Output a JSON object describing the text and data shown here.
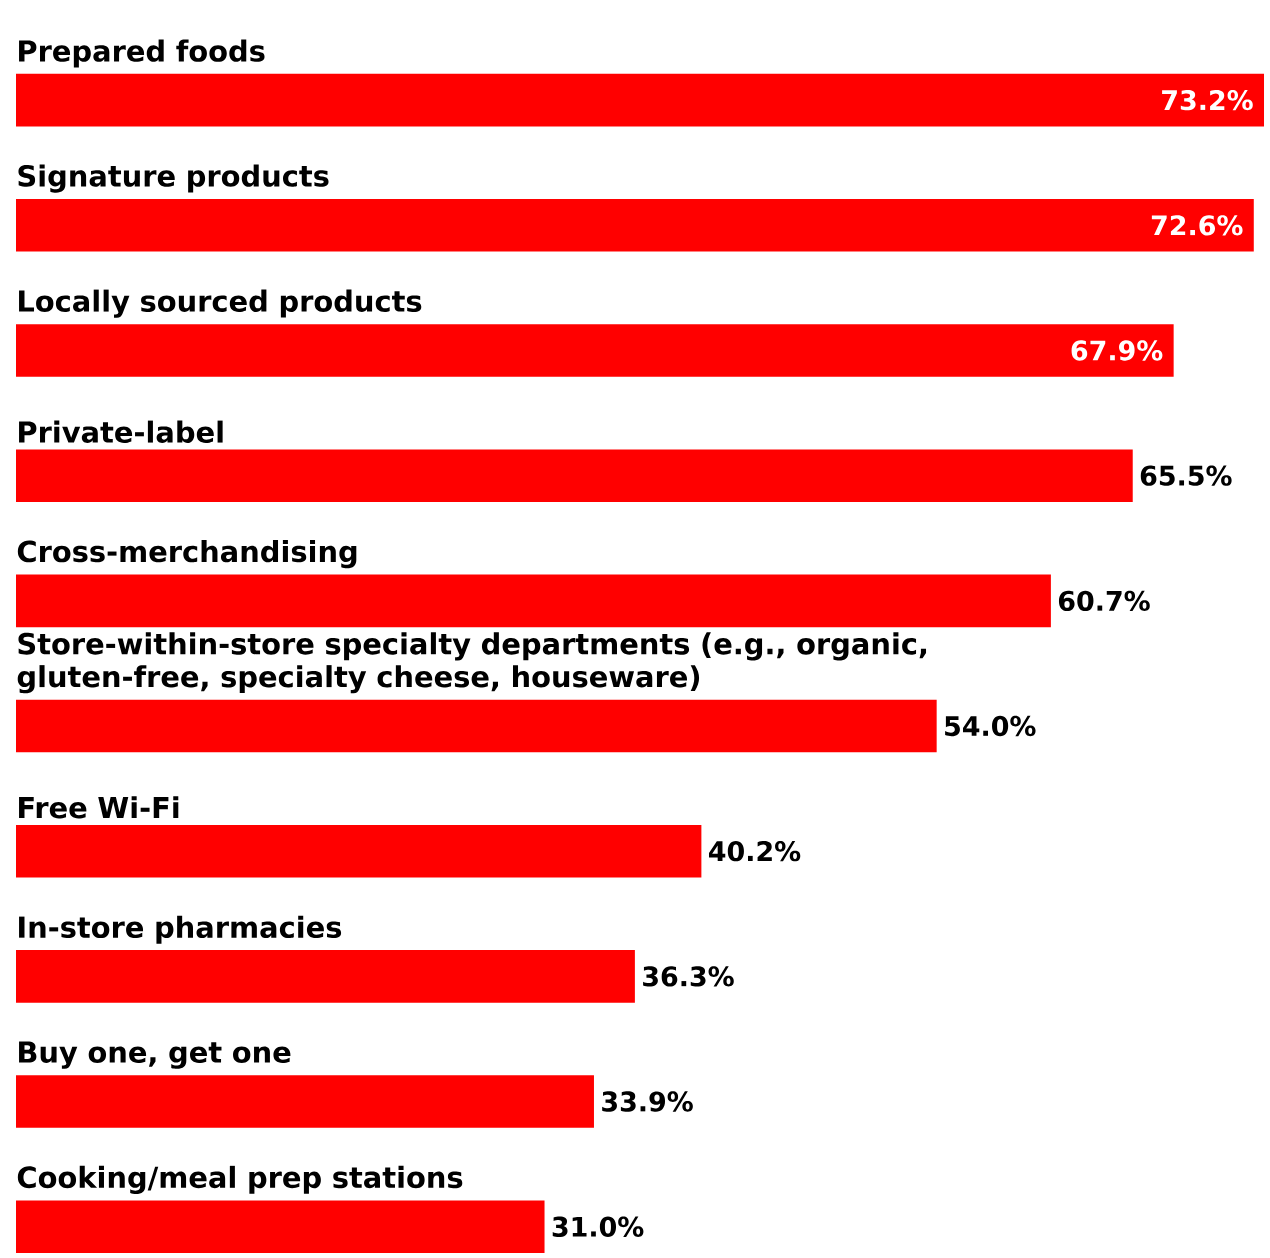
{
  "chart_data": {
    "type": "bar",
    "orientation": "horizontal",
    "relative": false,
    "categories": [
      "Prepared foods",
      "Signature products",
      "Locally sourced products",
      "Private-label",
      "Cross-merchandising",
      "Store-within-store specialty departments (e.g., organic, gluten-free, specialty cheese, houseware)",
      "Free Wi-Fi",
      "In-store pharmacies",
      "Buy one, get one",
      "Cooking/meal prep stations"
    ],
    "values": [
      73.2,
      72.6,
      67.9,
      65.5,
      60.7,
      54.0,
      40.2,
      36.3,
      33.9,
      31.0
    ],
    "value_labels": [
      "73.2%",
      "72.6%",
      "67.9%",
      "65.5%",
      "60.7%",
      "54.0%",
      "40.2%",
      "36.3%",
      "33.9%",
      "31.0%"
    ],
    "color": "#ff0000"
  }
}
